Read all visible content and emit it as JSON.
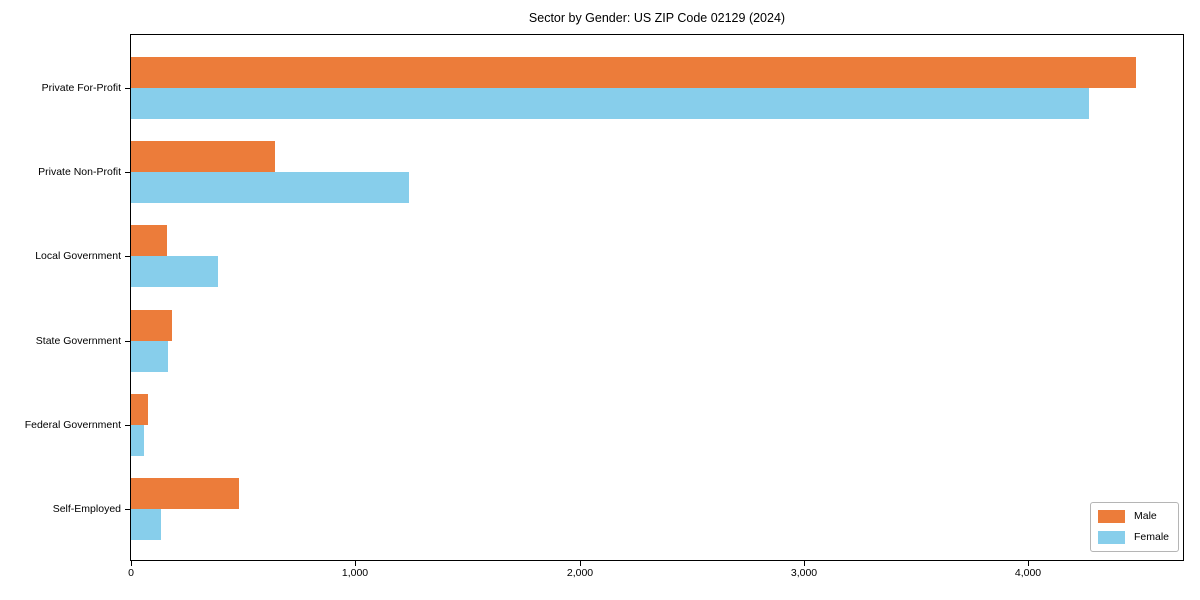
{
  "chart_data": {
    "type": "bar",
    "orientation": "horizontal",
    "title": "Sector by Gender: US ZIP Code 02129 (2024)",
    "categories": [
      "Private For-Profit",
      "Private Non-Profit",
      "Local Government",
      "State Government",
      "Federal Government",
      "Self-Employed"
    ],
    "series": [
      {
        "name": "Male",
        "color": "#ec7c3a",
        "values": [
          4480,
          640,
          160,
          185,
          75,
          480
        ]
      },
      {
        "name": "Female",
        "color": "#87ceeb",
        "values": [
          4270,
          1240,
          390,
          165,
          60,
          135
        ]
      }
    ],
    "xlabel": "",
    "ylabel": "",
    "xlim": [
      0,
      4690
    ],
    "xticks": [
      0,
      1000,
      2000,
      3000,
      4000
    ],
    "xtick_labels": [
      "0",
      "1,000",
      "2,000",
      "3,000",
      "4,000"
    ],
    "legend_position": "lower right",
    "grid": false,
    "background_color": "#ffffff",
    "spine_color": "#000000"
  }
}
